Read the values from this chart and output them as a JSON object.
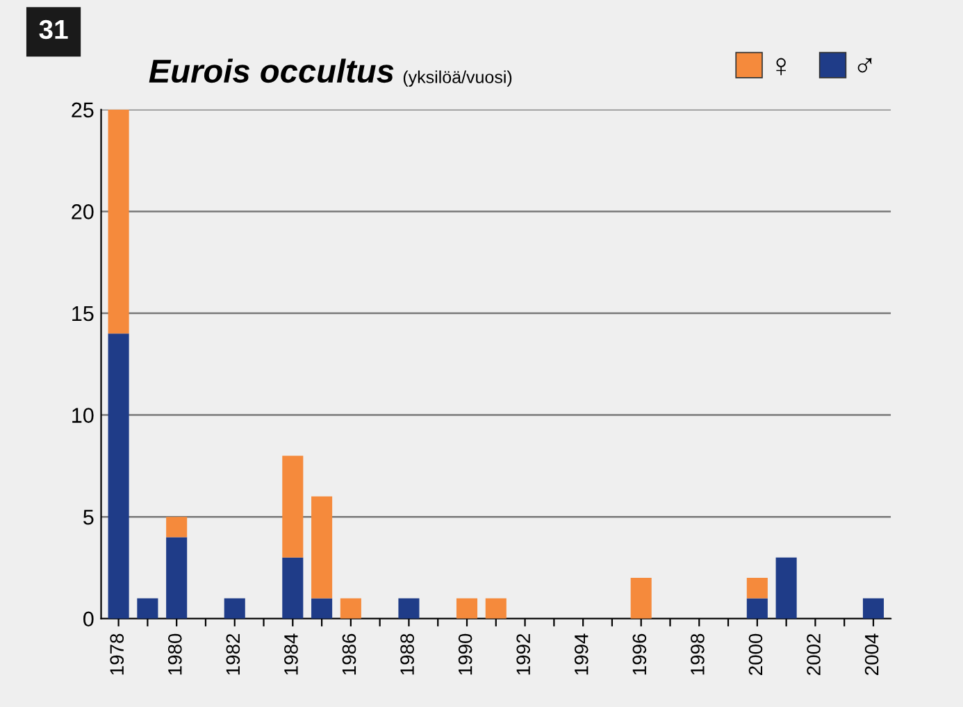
{
  "chart_data": {
    "type": "bar",
    "title": "Eurois occultus",
    "subtitle": "(yksilöä/vuosi)",
    "annotations": [
      "31"
    ],
    "categories": [
      "1978",
      null,
      "1980",
      null,
      "1982",
      null,
      "1984",
      null,
      "1986",
      null,
      "1988",
      null,
      "1990",
      null,
      "1992",
      null,
      "1994",
      null,
      "1996",
      null,
      "1998",
      null,
      "2000",
      null,
      "2002",
      null,
      "2004"
    ],
    "stacked": true,
    "series": [
      {
        "name": "♂",
        "color": "#1f3c88",
        "values": [
          14,
          1,
          4,
          0,
          1,
          0,
          3,
          1,
          0,
          0,
          1,
          0,
          0,
          0,
          0,
          0,
          0,
          0,
          0,
          0,
          0,
          0,
          1,
          3,
          0,
          0,
          1
        ]
      },
      {
        "name": "♀",
        "color": "#f58a3c",
        "values": [
          11,
          0,
          1,
          0,
          0,
          0,
          5,
          5,
          1,
          0,
          0,
          0,
          1,
          1,
          0,
          0,
          0,
          0,
          2,
          0,
          0,
          0,
          1,
          0,
          0,
          0,
          0
        ]
      }
    ],
    "ylim": [
      0,
      25
    ],
    "yticks": [
      0,
      5,
      10,
      15,
      20,
      25
    ],
    "grid": "y",
    "legend": "top right"
  }
}
